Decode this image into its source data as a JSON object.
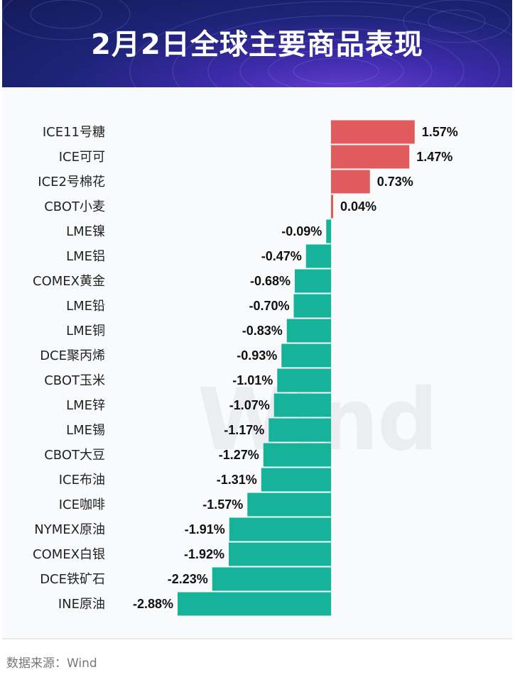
{
  "header": {
    "title": "2月2日全球主要商品表现"
  },
  "watermark": "Wind",
  "footer": {
    "source": "数据来源：Wind"
  },
  "colors": {
    "positive": "#e05b5d",
    "negative": "#16b29a",
    "banner": "#1d2478"
  },
  "chart_data": {
    "type": "bar",
    "orientation": "horizontal",
    "title": "2月2日全球主要商品表现",
    "unit": "%",
    "categories": [
      "ICE11号糖",
      "ICE可可",
      "ICE2号棉花",
      "CBOT小麦",
      "LME镍",
      "LME铝",
      "COMEX黄金",
      "LME铅",
      "LME铜",
      "DCE聚丙烯",
      "CBOT玉米",
      "LME锌",
      "LME锡",
      "CBOT大豆",
      "ICE布油",
      "ICE咖啡",
      "NYMEX原油",
      "COMEX白银",
      "DCE铁矿石",
      "INE原油"
    ],
    "values": [
      1.57,
      1.47,
      0.73,
      0.04,
      -0.09,
      -0.47,
      -0.68,
      -0.7,
      -0.83,
      -0.93,
      -1.01,
      -1.07,
      -1.17,
      -1.27,
      -1.31,
      -1.57,
      -1.91,
      -1.92,
      -2.23,
      -2.88
    ],
    "labels": [
      "1.57%",
      "1.47%",
      "0.73%",
      "0.04%",
      "-0.09%",
      "-0.47%",
      "-0.68%",
      "-0.70%",
      "-0.83%",
      "-0.93%",
      "-1.01%",
      "-1.07%",
      "-1.17%",
      "-1.27%",
      "-1.31%",
      "-1.57%",
      "-1.91%",
      "-1.92%",
      "-2.23%",
      "-2.88%"
    ],
    "grid": false,
    "legend": "none"
  }
}
